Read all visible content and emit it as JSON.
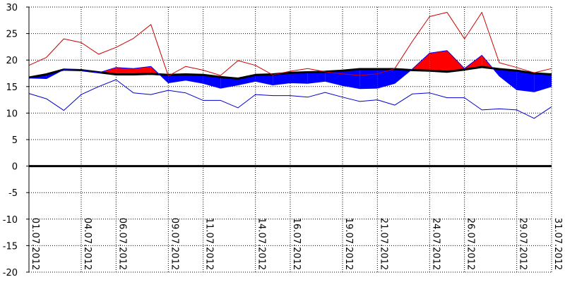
{
  "chart_data": {
    "type": "area",
    "ylim": [
      -20,
      30
    ],
    "yticks": [
      30,
      25,
      20,
      15,
      10,
      5,
      0,
      -5,
      -10,
      -15,
      -20
    ],
    "grid": true,
    "tick_labels": [
      "01.07.2012",
      "04.07.2012",
      "06.07.2012",
      "09.07.2012",
      "11.07.2012",
      "14.07.2012",
      "16.07.2012",
      "19.07.2012",
      "21.07.2012",
      "24.07.2012",
      "26.07.2012",
      "29.07.2012",
      "31.07.2012"
    ],
    "tick_days": [
      1,
      4,
      6,
      9,
      11,
      14,
      16,
      19,
      21,
      24,
      26,
      29,
      31
    ],
    "x_days": [
      1,
      2,
      3,
      4,
      5,
      6,
      7,
      8,
      9,
      10,
      11,
      12,
      13,
      14,
      15,
      16,
      17,
      18,
      19,
      20,
      21,
      22,
      23,
      24,
      25,
      26,
      27,
      28,
      29,
      30,
      31
    ],
    "series": [
      {
        "values": [
          16.7,
          17.3,
          18.2,
          18.1,
          17.7,
          17.3,
          17.3,
          17.4,
          17.2,
          17.3,
          17.2,
          16.8,
          16.5,
          17.2,
          17.3,
          17.6,
          17.7,
          17.8,
          18.0,
          18.3,
          18.3,
          18.3,
          18.1,
          18.0,
          17.8,
          18.2,
          18.7,
          18.3,
          18.0,
          17.5,
          17.3
        ],
        "color": "#000000"
      },
      {
        "values": [
          16.6,
          16.5,
          18.2,
          18.1,
          17.6,
          18.6,
          18.4,
          18.8,
          15.7,
          16.2,
          15.6,
          14.7,
          15.3,
          16.0,
          15.3,
          15.7,
          15.6,
          16.0,
          15.2,
          14.6,
          14.7,
          15.6,
          18.3,
          21.3,
          21.8,
          18.4,
          20.9,
          17.0,
          14.4,
          14.0,
          15.0
        ],
        "color": "#0000ff"
      },
      {
        "values": [
          19.0,
          20.5,
          24.0,
          23.3,
          21.1,
          22.4,
          24.1,
          26.7,
          17.0,
          18.8,
          18.1,
          17.1,
          19.9,
          19.0,
          17.2,
          17.9,
          18.4,
          17.8,
          17.4,
          17.1,
          17.4,
          18.4,
          23.5,
          28.2,
          29.0,
          24.0,
          29.0,
          19.5,
          18.6,
          17.6,
          18.4
        ],
        "color": "#cc0000"
      },
      {
        "values": [
          13.7,
          12.7,
          10.5,
          13.5,
          15.0,
          16.3,
          13.8,
          13.5,
          14.3,
          13.8,
          12.4,
          12.4,
          11.0,
          13.5,
          13.3,
          13.3,
          13.0,
          13.9,
          13.0,
          12.2,
          12.5,
          11.5,
          13.6,
          13.8,
          12.9,
          12.9,
          10.6,
          10.8,
          10.6,
          9.0,
          11.2
        ],
        "color": "#0000cc"
      }
    ],
    "colors": {
      "above": "#ff0000",
      "below": "#0000ff",
      "zero_line": "#000000"
    }
  }
}
